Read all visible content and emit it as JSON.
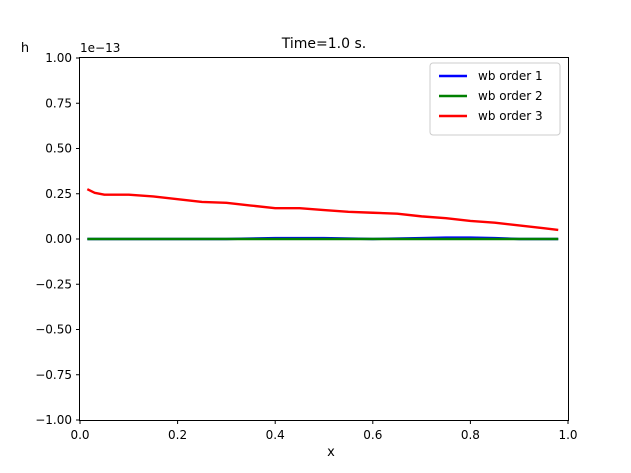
{
  "chart_data": {
    "type": "line",
    "title": "Time=1.0 s.",
    "xlabel": "x",
    "ylabel": "h",
    "y_scale_label": "1e−13",
    "xlim": [
      0.0,
      1.0
    ],
    "ylim": [
      -1.0,
      1.0
    ],
    "x_ticks": [
      "0.0",
      "0.2",
      "0.4",
      "0.6",
      "0.8",
      "1.0"
    ],
    "y_ticks": [
      "−1.00",
      "−0.75",
      "−0.50",
      "−0.25",
      "0.00",
      "0.25",
      "0.50",
      "0.75",
      "1.00"
    ],
    "x_tick_values": [
      0.0,
      0.2,
      0.4,
      0.6,
      0.8,
      1.0
    ],
    "y_tick_values": [
      -1.0,
      -0.75,
      -0.5,
      -0.25,
      0.0,
      0.25,
      0.5,
      0.75,
      1.0
    ],
    "legend_position": "top-right",
    "grid": false,
    "series": [
      {
        "name": "wb order 1",
        "color": "#0000ff",
        "x": [
          0.015,
          0.1,
          0.2,
          0.3,
          0.4,
          0.5,
          0.6,
          0.7,
          0.75,
          0.8,
          0.85,
          0.9,
          0.98
        ],
        "y": [
          0.0,
          0.0,
          0.0,
          0.0,
          0.005,
          0.005,
          0.0,
          0.005,
          0.008,
          0.008,
          0.005,
          0.0,
          0.0
        ]
      },
      {
        "name": "wb order 2",
        "color": "#008000",
        "x": [
          0.015,
          0.1,
          0.2,
          0.3,
          0.4,
          0.5,
          0.6,
          0.7,
          0.8,
          0.9,
          0.98
        ],
        "y": [
          0.0,
          0.0,
          0.0,
          0.0,
          0.0,
          0.0,
          0.0,
          0.0,
          0.0,
          0.0,
          0.0
        ]
      },
      {
        "name": "wb order 3",
        "color": "#ff0000",
        "x": [
          0.015,
          0.03,
          0.05,
          0.1,
          0.15,
          0.2,
          0.25,
          0.3,
          0.35,
          0.4,
          0.45,
          0.5,
          0.55,
          0.6,
          0.65,
          0.7,
          0.75,
          0.8,
          0.85,
          0.9,
          0.95,
          0.98
        ],
        "y": [
          0.275,
          0.255,
          0.245,
          0.245,
          0.235,
          0.22,
          0.205,
          0.2,
          0.185,
          0.17,
          0.17,
          0.16,
          0.15,
          0.145,
          0.14,
          0.125,
          0.115,
          0.1,
          0.09,
          0.075,
          0.06,
          0.05
        ]
      }
    ]
  }
}
